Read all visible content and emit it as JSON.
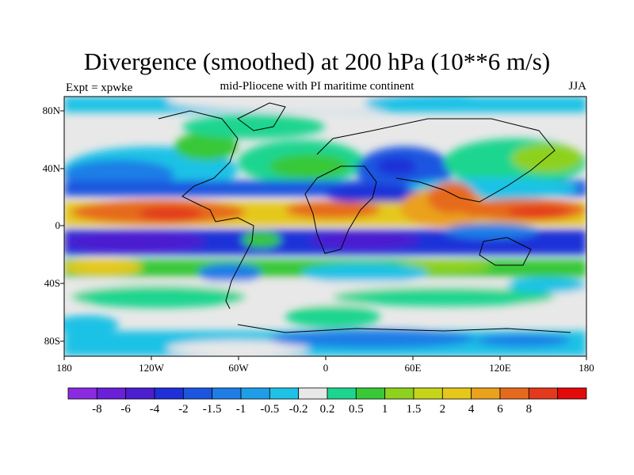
{
  "title": "Divergence (smoothed) at 200 hPa (10**6 m/s)",
  "left_label": "Expt = xpwke",
  "center_label": "mid-Pliocene with PI maritime continent",
  "right_label": "JJA",
  "lat_labels": [
    "80N",
    "40N",
    "0",
    "40S",
    "80S"
  ],
  "lon_labels": [
    "180",
    "120W",
    "60W",
    "0",
    "60E",
    "120E",
    "180"
  ],
  "colorbar": {
    "colors": [
      "#8a2be2",
      "#6a1fd8",
      "#4b1ed0",
      "#1f30d8",
      "#1c56e0",
      "#1f7ee6",
      "#1e9ee8",
      "#1ec2e6",
      "#e8e8e8",
      "#1ed58f",
      "#38c838",
      "#8ed11e",
      "#c6d51a",
      "#e5c81a",
      "#eaa11c",
      "#e66a1e",
      "#e33a1e",
      "#e30a0a"
    ],
    "labels": [
      "-8",
      "-6",
      "-4",
      "-2",
      "-1.5",
      "-1",
      "-0.5",
      "-0.2",
      "0.2",
      "0.5",
      "1",
      "1.5",
      "2",
      "4",
      "6",
      "8"
    ]
  }
}
